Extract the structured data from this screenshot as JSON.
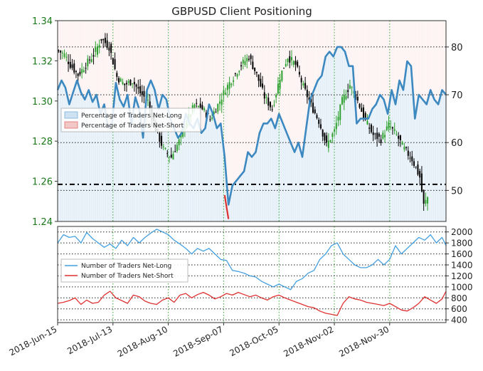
{
  "chart_data": [
    {
      "type": "candlestick+line",
      "title": "GBPUSD Client Positioning",
      "left_axis": {
        "ylim": [
          1.24,
          1.34
        ],
        "ticks": [
          "1.24",
          "1.26",
          "1.28",
          "1.30",
          "1.32",
          "1.34"
        ],
        "tick_values": [
          1.24,
          1.26,
          1.28,
          1.3,
          1.32,
          1.34
        ],
        "color": "#1a7a1a"
      },
      "right_axis": {
        "ylim": [
          43.5,
          85.5
        ],
        "ticks": [
          "50",
          "60",
          "70",
          "80"
        ],
        "tick_values": [
          50,
          60,
          70,
          80
        ]
      },
      "reference_line": 1.2585,
      "legend": {
        "placement": "center-left",
        "entries": [
          "Percentage of Traders Net-Long",
          "Percentage of Traders Net-Short"
        ]
      },
      "colors": {
        "long_fill": "#cfe2f3",
        "short_fill": "#f4c7c7",
        "line": "#3c88c0",
        "short_line": "#e03030",
        "candle_up": "#2ca02c",
        "candle_down": "#000000"
      },
      "ohlc_anchors": [
        [
          0,
          1.325
        ],
        [
          3,
          1.323
        ],
        [
          6,
          1.318
        ],
        [
          10,
          1.313
        ],
        [
          14,
          1.318
        ],
        [
          18,
          1.323
        ],
        [
          22,
          1.331
        ],
        [
          26,
          1.327
        ],
        [
          30,
          1.312
        ],
        [
          34,
          1.308
        ],
        [
          38,
          1.31
        ],
        [
          42,
          1.304
        ],
        [
          46,
          1.3
        ],
        [
          50,
          1.286
        ],
        [
          54,
          1.276
        ],
        [
          58,
          1.272
        ],
        [
          62,
          1.28
        ],
        [
          66,
          1.29
        ],
        [
          70,
          1.298
        ],
        [
          74,
          1.296
        ],
        [
          78,
          1.291
        ],
        [
          82,
          1.298
        ],
        [
          86,
          1.306
        ],
        [
          90,
          1.312
        ],
        [
          94,
          1.318
        ],
        [
          98,
          1.322
        ],
        [
          102,
          1.313
        ],
        [
          106,
          1.302
        ],
        [
          110,
          1.296
        ],
        [
          114,
          1.312
        ],
        [
          118,
          1.322
        ],
        [
          122,
          1.318
        ],
        [
          126,
          1.307
        ],
        [
          130,
          1.298
        ],
        [
          134,
          1.29
        ],
        [
          138,
          1.278
        ],
        [
          142,
          1.285
        ],
        [
          146,
          1.3
        ],
        [
          150,
          1.308
        ],
        [
          154,
          1.3
        ],
        [
          158,
          1.29
        ],
        [
          162,
          1.283
        ],
        [
          166,
          1.281
        ],
        [
          170,
          1.288
        ],
        [
          174,
          1.283
        ],
        [
          178,
          1.276
        ],
        [
          182,
          1.271
        ],
        [
          186,
          1.262
        ],
        [
          188,
          1.248
        ],
        [
          190,
          1.252
        ]
      ],
      "percent_long": [
        [
          0,
          71
        ],
        [
          2,
          73
        ],
        [
          4,
          71.5
        ],
        [
          6,
          68
        ],
        [
          8,
          70.5
        ],
        [
          10,
          73
        ],
        [
          12,
          70.5
        ],
        [
          14,
          69
        ],
        [
          16,
          71
        ],
        [
          18,
          68.5
        ],
        [
          20,
          70
        ],
        [
          22,
          66
        ],
        [
          24,
          68
        ],
        [
          26,
          63
        ],
        [
          28,
          64
        ],
        [
          30,
          72.5
        ],
        [
          32,
          69
        ],
        [
          34,
          67.5
        ],
        [
          36,
          70
        ],
        [
          38,
          64
        ],
        [
          40,
          69.5
        ],
        [
          42,
          67
        ],
        [
          44,
          61
        ],
        [
          46,
          71
        ],
        [
          48,
          73
        ],
        [
          50,
          71
        ],
        [
          52,
          67
        ],
        [
          54,
          70
        ],
        [
          56,
          69
        ],
        [
          58,
          65
        ],
        [
          60,
          63
        ],
        [
          62,
          61
        ],
        [
          64,
          62
        ],
        [
          66,
          66
        ],
        [
          68,
          64
        ],
        [
          70,
          63
        ],
        [
          72,
          65
        ],
        [
          74,
          62
        ],
        [
          76,
          63
        ],
        [
          78,
          68
        ],
        [
          80,
          66
        ],
        [
          82,
          63
        ],
        [
          84,
          64
        ],
        [
          86,
          57
        ],
        [
          88,
          47
        ],
        [
          90,
          51
        ],
        [
          92,
          52
        ],
        [
          94,
          53
        ],
        [
          96,
          54
        ],
        [
          98,
          58
        ],
        [
          100,
          57
        ],
        [
          102,
          58
        ],
        [
          104,
          62
        ],
        [
          106,
          64
        ],
        [
          108,
          64
        ],
        [
          110,
          65
        ],
        [
          112,
          63
        ],
        [
          114,
          66
        ],
        [
          116,
          64
        ],
        [
          118,
          62
        ],
        [
          120,
          60
        ],
        [
          122,
          58
        ],
        [
          124,
          60
        ],
        [
          126,
          57
        ],
        [
          128,
          63
        ],
        [
          130,
          69
        ],
        [
          132,
          71
        ],
        [
          134,
          73
        ],
        [
          136,
          74
        ],
        [
          138,
          78
        ],
        [
          140,
          79
        ],
        [
          142,
          78
        ],
        [
          144,
          80
        ],
        [
          146,
          80
        ],
        [
          148,
          79
        ],
        [
          150,
          76
        ],
        [
          152,
          76
        ],
        [
          154,
          64
        ],
        [
          156,
          65
        ],
        [
          158,
          65
        ],
        [
          160,
          65
        ],
        [
          162,
          67
        ],
        [
          164,
          68
        ],
        [
          166,
          70
        ],
        [
          168,
          69
        ],
        [
          170,
          66
        ],
        [
          172,
          71
        ],
        [
          174,
          68
        ],
        [
          176,
          73
        ],
        [
          178,
          71
        ],
        [
          180,
          77
        ],
        [
          182,
          76
        ],
        [
          184,
          65
        ],
        [
          186,
          70
        ],
        [
          188,
          69
        ],
        [
          190,
          68
        ],
        [
          192,
          71
        ],
        [
          194,
          69
        ],
        [
          196,
          68
        ],
        [
          198,
          71
        ],
        [
          200,
          70
        ]
      ],
      "percent_long_min_segment": [
        [
          86,
          49
        ],
        [
          88,
          44
        ]
      ]
    },
    {
      "type": "line",
      "right_axis": {
        "ylim": [
          350,
          2100
        ],
        "ticks": [
          "400",
          "600",
          "800",
          "1000",
          "1200",
          "1400",
          "1600",
          "1800",
          "2000"
        ],
        "tick_values": [
          400,
          600,
          800,
          1000,
          1200,
          1400,
          1600,
          1800,
          2000
        ]
      },
      "x_ticks": [
        "2018-Jun-15",
        "2018-Jul-13",
        "2018-Aug-10",
        "2018-Sep-07",
        "2018-Oct-05",
        "2018-Nov-02",
        "2018-Nov-30"
      ],
      "legend": {
        "placement": "center-left",
        "entries": [
          "Number of Traders Net-Long",
          "Number of Traders Net-Short"
        ]
      },
      "series": [
        {
          "name": "Number of Traders Net-Long",
          "color": "#44a0e0",
          "values": [
            [
              0,
              1800
            ],
            [
              3,
              1950
            ],
            [
              6,
              1900
            ],
            [
              9,
              1920
            ],
            [
              12,
              1800
            ],
            [
              15,
              1990
            ],
            [
              18,
              1880
            ],
            [
              21,
              1800
            ],
            [
              24,
              1720
            ],
            [
              27,
              1780
            ],
            [
              30,
              1700
            ],
            [
              33,
              1850
            ],
            [
              36,
              1750
            ],
            [
              39,
              1900
            ],
            [
              42,
              1800
            ],
            [
              45,
              1900
            ],
            [
              48,
              1980
            ],
            [
              51,
              2050
            ],
            [
              54,
              2000
            ],
            [
              57,
              1950
            ],
            [
              60,
              1850
            ],
            [
              63,
              1780
            ],
            [
              66,
              1700
            ],
            [
              69,
              1600
            ],
            [
              72,
              1700
            ],
            [
              75,
              1650
            ],
            [
              78,
              1700
            ],
            [
              81,
              1600
            ],
            [
              84,
              1500
            ],
            [
              87,
              1480
            ],
            [
              90,
              1300
            ],
            [
              93,
              1280
            ],
            [
              96,
              1250
            ],
            [
              99,
              1200
            ],
            [
              102,
              1180
            ],
            [
              105,
              1100
            ],
            [
              108,
              1050
            ],
            [
              111,
              1000
            ],
            [
              114,
              1050
            ],
            [
              117,
              1000
            ],
            [
              120,
              950
            ],
            [
              123,
              1100
            ],
            [
              126,
              1150
            ],
            [
              129,
              1250
            ],
            [
              132,
              1300
            ],
            [
              135,
              1500
            ],
            [
              138,
              1600
            ],
            [
              141,
              1750
            ],
            [
              144,
              1800
            ],
            [
              147,
              1600
            ],
            [
              150,
              1500
            ],
            [
              153,
              1400
            ],
            [
              156,
              1350
            ],
            [
              159,
              1350
            ],
            [
              162,
              1400
            ],
            [
              165,
              1500
            ],
            [
              168,
              1400
            ],
            [
              171,
              1500
            ],
            [
              174,
              1750
            ],
            [
              177,
              1600
            ],
            [
              180,
              1700
            ],
            [
              183,
              1800
            ],
            [
              186,
              1900
            ],
            [
              189,
              1850
            ],
            [
              192,
              1950
            ],
            [
              195,
              1800
            ],
            [
              198,
              1900
            ],
            [
              200,
              1750
            ]
          ]
        },
        {
          "name": "Number of Traders Net-Short",
          "color": "#e03030",
          "values": [
            [
              0,
              700
            ],
            [
              3,
              720
            ],
            [
              6,
              750
            ],
            [
              9,
              800
            ],
            [
              12,
              680
            ],
            [
              15,
              760
            ],
            [
              18,
              700
            ],
            [
              21,
              720
            ],
            [
              24,
              850
            ],
            [
              27,
              920
            ],
            [
              30,
              800
            ],
            [
              33,
              750
            ],
            [
              36,
              700
            ],
            [
              39,
              850
            ],
            [
              42,
              820
            ],
            [
              45,
              740
            ],
            [
              48,
              700
            ],
            [
              51,
              680
            ],
            [
              54,
              760
            ],
            [
              57,
              800
            ],
            [
              60,
              720
            ],
            [
              63,
              850
            ],
            [
              66,
              880
            ],
            [
              69,
              800
            ],
            [
              72,
              860
            ],
            [
              75,
              900
            ],
            [
              78,
              850
            ],
            [
              81,
              780
            ],
            [
              84,
              820
            ],
            [
              87,
              880
            ],
            [
              90,
              850
            ],
            [
              93,
              900
            ],
            [
              96,
              860
            ],
            [
              99,
              820
            ],
            [
              102,
              850
            ],
            [
              105,
              800
            ],
            [
              108,
              760
            ],
            [
              111,
              820
            ],
            [
              114,
              850
            ],
            [
              117,
              800
            ],
            [
              120,
              760
            ],
            [
              123,
              720
            ],
            [
              126,
              680
            ],
            [
              129,
              640
            ],
            [
              132,
              620
            ],
            [
              135,
              560
            ],
            [
              138,
              520
            ],
            [
              141,
              500
            ],
            [
              144,
              480
            ],
            [
              147,
              700
            ],
            [
              150,
              820
            ],
            [
              153,
              780
            ],
            [
              156,
              760
            ],
            [
              159,
              720
            ],
            [
              162,
              700
            ],
            [
              165,
              680
            ],
            [
              168,
              660
            ],
            [
              171,
              700
            ],
            [
              174,
              640
            ],
            [
              177,
              580
            ],
            [
              180,
              560
            ],
            [
              183,
              620
            ],
            [
              186,
              700
            ],
            [
              189,
              820
            ],
            [
              192,
              760
            ],
            [
              195,
              700
            ],
            [
              198,
              780
            ],
            [
              200,
              920
            ]
          ]
        }
      ]
    }
  ]
}
